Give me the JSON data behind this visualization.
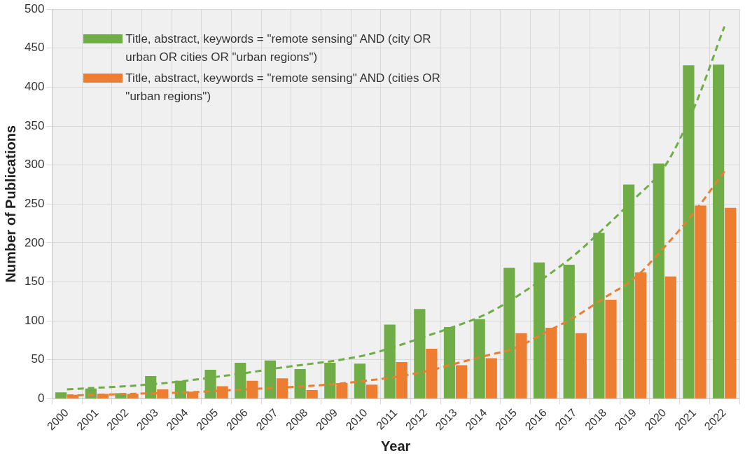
{
  "chart_data": {
    "type": "bar",
    "xlabel": "Year",
    "ylabel": "Number of Publications",
    "categories": [
      "2000",
      "2001",
      "2002",
      "2003",
      "2004",
      "2005",
      "2006",
      "2007",
      "2008",
      "2009",
      "2010",
      "2011",
      "2012",
      "2013",
      "2014",
      "2015",
      "2016",
      "2017",
      "2018",
      "2019",
      "2020",
      "2021",
      "2022"
    ],
    "series": [
      {
        "name": "Title, abstract, keywords = \"remote sensing\" AND (city OR urban OR cities OR \"urban regions\")",
        "color": "#70ad47",
        "values": [
          8,
          13,
          7,
          29,
          23,
          37,
          46,
          49,
          38,
          46,
          45,
          95,
          115,
          92,
          102,
          168,
          175,
          172,
          213,
          275,
          302,
          428,
          429
        ]
      },
      {
        "name": "Title, abstract, keywords = \"remote sensing\" AND (cities OR \"urban regions\")",
        "color": "#ed7d31",
        "values": [
          5,
          6,
          6,
          12,
          9,
          16,
          23,
          26,
          11,
          20,
          18,
          47,
          64,
          43,
          52,
          84,
          91,
          84,
          127,
          162,
          157,
          248,
          245
        ]
      },
      {
        "type": "line",
        "color": "#70ad47",
        "line_style": "dashed",
        "values": [
          12,
          14,
          16,
          19,
          23,
          28,
          33,
          39,
          44,
          49,
          56,
          67,
          80,
          93,
          108,
          130,
          156,
          185,
          220,
          257,
          298,
          375,
          478
        ]
      },
      {
        "type": "line",
        "color": "#ed7d31",
        "line_style": "dashed",
        "values": [
          4,
          5,
          6,
          7,
          8,
          10,
          12,
          14,
          16,
          19,
          23,
          28,
          35,
          45,
          55,
          65,
          85,
          105,
          130,
          155,
          195,
          240,
          292
        ]
      }
    ],
    "ylim": [
      0,
      500
    ],
    "yticks": [
      0,
      50,
      100,
      150,
      200,
      250,
      300,
      350,
      400,
      450,
      500
    ],
    "grid": true,
    "legend": "top left"
  }
}
